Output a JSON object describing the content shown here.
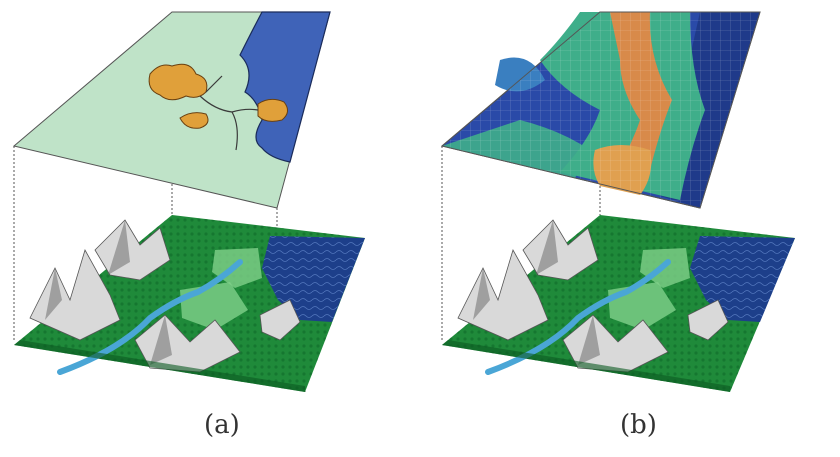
{
  "figure": {
    "panels": [
      {
        "id": "a",
        "caption": "(a)",
        "top_layer": "vector"
      },
      {
        "id": "b",
        "caption": "(b)",
        "top_layer": "raster"
      }
    ],
    "colors": {
      "vector_land": "#bfe3c8",
      "vector_water": "#3f63b8",
      "vector_urban": "#e0a03a",
      "terrain_forest": "#1f8a3a",
      "terrain_water": "#1d3f8a",
      "terrain_mountain": "#d9d9d9",
      "raster_high": "#d88a4a",
      "raster_mid": "#3fae8a",
      "raster_low": "#2a4aa8"
    }
  }
}
